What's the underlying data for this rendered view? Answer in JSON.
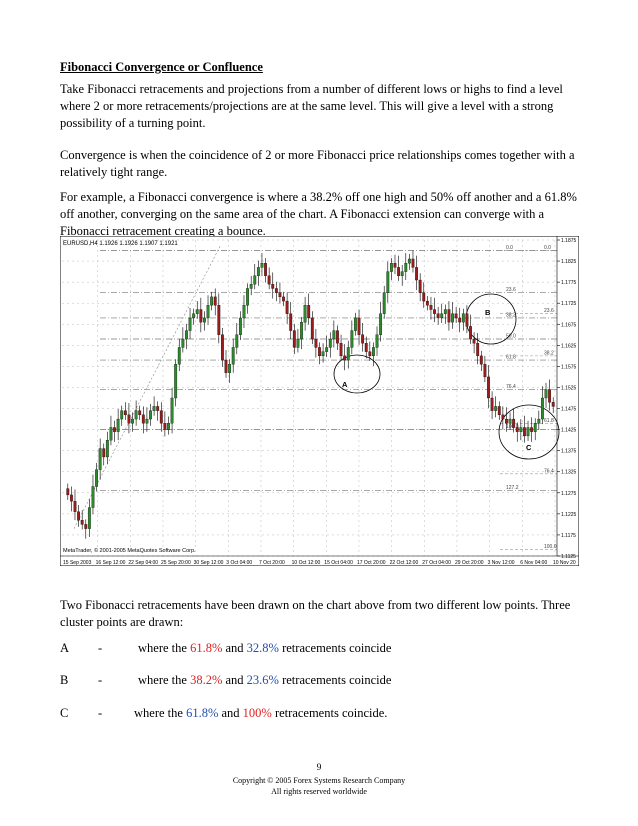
{
  "title": "Fibonacci Convergence or Confluence",
  "paragraphs": [
    "Take Fibonacci retracements and projections from a number of different lows or highs to find a level where 2 or more retracements/projections are at the same level. This will give a level with a strong possibility of a turning point.",
    "Convergence is when the coincidence of 2 or more Fibonacci price relationships comes together with a relatively tight range.",
    "For example, a Fibonacci convergence is where a 38.2% off one high and 50% off another and a 61.8% off another, converging on the same area of the chart. A Fibonacci extension can converge with a Fibonacci retracement creating a bounce."
  ],
  "chart": {
    "header": "EURUSD,H4  1.1926 1.1926 1.1907 1.1921",
    "watermark": "MetaTrader, © 2001-2005 MetaQuotes Software Corp.",
    "price_labels": [
      "1.1875",
      "1.1825",
      "1.1775",
      "1.1725",
      "1.1675",
      "1.1625",
      "1.1575",
      "1.1525",
      "1.1475",
      "1.1425",
      "1.1375",
      "1.1325",
      "1.1275",
      "1.1225",
      "1.1175",
      "1.1125"
    ],
    "time_labels": [
      "15 Sep 2003",
      "16 Sep 12:00",
      "22 Sep 04:00",
      "25 Sep 20:00",
      "30 Sep 12:00",
      "3 Oct 04:00",
      "7 Oct 20:00",
      "10 Oct 12:00",
      "15 Oct 04:00",
      "17 Oct 20:00",
      "22 Oct 12:00",
      "27 Oct 04:00",
      "29 Oct 20:00",
      "3 Nov 12:00",
      "6 Nov 04:00",
      "10 Nov 20"
    ],
    "fib_labels_a": [
      "0.0",
      "23.6",
      "38.2",
      "50.0",
      "61.8",
      "76.4",
      "100.0",
      "127.2"
    ],
    "fib_labels_b": [
      "0.0",
      "23.6",
      "38.2",
      "61.8",
      "76.4",
      "100.0"
    ],
    "markers": [
      "A",
      "B",
      "C"
    ]
  },
  "chart_data": {
    "type": "candlestick",
    "symbol": "EURUSD,H4",
    "ohlc_header": [
      1.1926,
      1.1926,
      1.1907,
      1.1921
    ],
    "ylim": [
      1.1125,
      1.1875
    ],
    "close": [
      1.127,
      1.1255,
      1.123,
      1.121,
      1.12,
      1.119,
      1.124,
      1.129,
      1.133,
      1.138,
      1.136,
      1.14,
      1.143,
      1.142,
      1.145,
      1.147,
      1.146,
      1.144,
      1.145,
      1.147,
      1.146,
      1.144,
      1.145,
      1.147,
      1.148,
      1.147,
      1.144,
      1.1425,
      1.144,
      1.15,
      1.158,
      1.162,
      1.164,
      1.166,
      1.169,
      1.17,
      1.171,
      1.168,
      1.169,
      1.172,
      1.174,
      1.172,
      1.165,
      1.159,
      1.156,
      1.158,
      1.162,
      1.165,
      1.169,
      1.172,
      1.176,
      1.177,
      1.179,
      1.181,
      1.182,
      1.179,
      1.177,
      1.176,
      1.175,
      1.174,
      1.173,
      1.17,
      1.166,
      1.162,
      1.164,
      1.168,
      1.172,
      1.169,
      1.164,
      1.162,
      1.16,
      1.161,
      1.162,
      1.164,
      1.166,
      1.163,
      1.16,
      1.159,
      1.162,
      1.166,
      1.169,
      1.165,
      1.163,
      1.161,
      1.16,
      1.162,
      1.165,
      1.17,
      1.175,
      1.18,
      1.182,
      1.181,
      1.179,
      1.18,
      1.182,
      1.183,
      1.181,
      1.178,
      1.175,
      1.173,
      1.172,
      1.171,
      1.17,
      1.169,
      1.17,
      1.171,
      1.168,
      1.17,
      1.169,
      1.168,
      1.17,
      1.167,
      1.164,
      1.163,
      1.16,
      1.158,
      1.155,
      1.15,
      1.147,
      1.148,
      1.146,
      1.145,
      1.144,
      1.145,
      1.143,
      1.142,
      1.143,
      1.141,
      1.143,
      1.142,
      1.144,
      1.145,
      1.15,
      1.152,
      1.149,
      1.148
    ],
    "annotations": [
      {
        "label": "A",
        "desc": "61.8% and 32.8% retracements coincide"
      },
      {
        "label": "B",
        "desc": "38.2% and 23.6% retracements coincide"
      },
      {
        "label": "C",
        "desc": "61.8% and 100% retracements coincide"
      }
    ]
  },
  "after_text": "Two Fibonacci retracements have been drawn on the chart above from two different low points. Three cluster points are drawn:",
  "clusters": [
    {
      "label": "A",
      "dash": "-",
      "pre": "where the",
      "p1": "61.8%",
      "p1color": "red",
      "mid": "and",
      "p2": "32.8%",
      "p2color": "blue",
      "post": "retracements coincide"
    },
    {
      "label": "B",
      "dash": "-",
      "pre": "where the",
      "p1": "38.2%",
      "p1color": "red",
      "mid": "and",
      "p2": "23.6%",
      "p2color": "blue",
      "post": "retracements coincide"
    },
    {
      "label": "C",
      "dash": "-",
      "pre": "where the",
      "p1": "61.8%",
      "p1color": "blue",
      "mid": "and",
      "p2": "100%",
      "p2color": "red",
      "post": "retracements coincide."
    }
  ],
  "footer": {
    "page": "9",
    "copyright": "Copyright © 2005 Forex Systems Research Company",
    "rights": "All rights reserved worldwide"
  }
}
